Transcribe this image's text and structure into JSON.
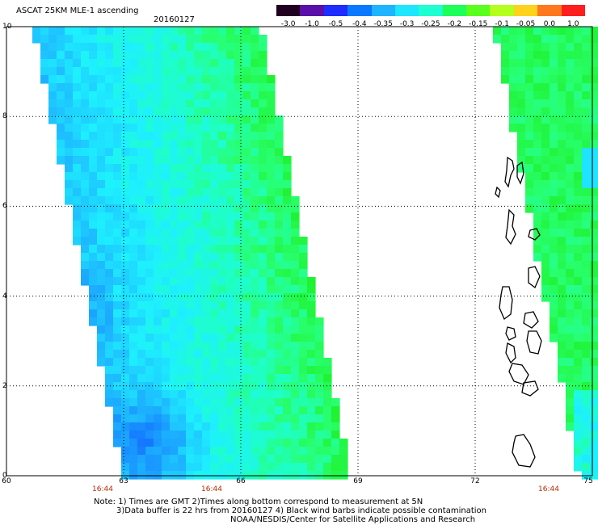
{
  "header": {
    "title": "ASCAT 25KM MLE-1 ascending",
    "date": "20160127"
  },
  "colorbar": {
    "ticks": [
      "-3.0",
      "-1.0",
      "-0.5",
      "-0.4",
      "-0.35",
      "-0.3",
      "-0.25",
      "-0.2",
      "-0.15",
      "-0.1",
      "-0.05",
      "0.0",
      "1.0"
    ],
    "colors": [
      "#200020",
      "#5a10a8",
      "#1e2cff",
      "#0a78ff",
      "#1eb4ff",
      "#1ee6ff",
      "#1effd2",
      "#1eff5a",
      "#5aff1e",
      "#b4ff1e",
      "#ffd21e",
      "#ff781e",
      "#ff1e1e"
    ]
  },
  "axes": {
    "x_ticks": [
      "60",
      "63",
      "66",
      "69",
      "72",
      "75"
    ],
    "y_ticks": [
      "10",
      "8",
      "6",
      "4",
      "2",
      "0"
    ],
    "x_range": [
      60,
      75
    ],
    "y_range": [
      0,
      10
    ],
    "grid": "dotted"
  },
  "pass_times": [
    "16:44",
    "16:44",
    "16:44"
  ],
  "notes": {
    "line1": "Note: 1) Times are GMT 2)Times along bottom correspond to measurement at 5N",
    "line2": "3)Data buffer is 22 hrs from 20160127 4) Black wind barbs indicate possible contamination",
    "credit": "NOAA/NESDIS/Center for Satellite Applications and Research"
  },
  "swaths": [
    {
      "name": "western swath",
      "dominant_color": "cyan-green"
    },
    {
      "name": "eastern swath",
      "dominant_color": "green"
    }
  ]
}
